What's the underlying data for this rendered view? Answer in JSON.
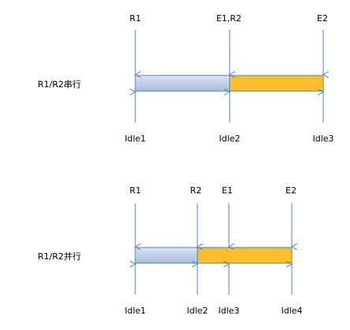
{
  "colors": {
    "arrow": "#4f81bd",
    "bar_stroke": "#4f81bd",
    "yellow_fill": "#fbbe2c",
    "blue_fill_top": "#dce6f2",
    "blue_fill_bottom": "#a6bcd8"
  },
  "serial": {
    "label": "R1/R2串行",
    "top_labels": [
      "R1",
      "E1,R2",
      "E2"
    ],
    "bottom_labels": [
      "Idle1",
      "Idle2",
      "Idle3"
    ]
  },
  "parallel": {
    "label": "R1/R2并行",
    "top_labels": [
      "R1",
      "R2",
      "E1",
      "E2"
    ],
    "bottom_labels": [
      "Idle1",
      "Idle2",
      "Idle3",
      "Idle4"
    ]
  }
}
